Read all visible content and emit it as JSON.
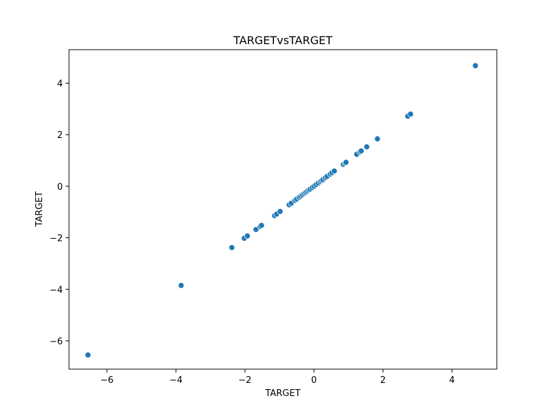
{
  "chart_data": {
    "type": "scatter",
    "title": "TARGETvsTARGET",
    "xlabel": "TARGET",
    "ylabel": "TARGET",
    "xlim": [
      -7.1,
      5.3
    ],
    "ylim": [
      -7.1,
      5.3
    ],
    "xticks": [
      -6,
      -4,
      -2,
      0,
      2,
      4
    ],
    "yticks": [
      -6,
      -4,
      -2,
      0,
      2,
      4
    ],
    "xtick_labels": [
      "−6",
      "−4",
      "−2",
      "0",
      "2",
      "4"
    ],
    "ytick_labels": [
      "−6",
      "−4",
      "−2",
      "0",
      "2",
      "4"
    ],
    "grid": false,
    "color": "#1f77b4",
    "x": [
      -6.55,
      -3.85,
      -2.38,
      -2.02,
      -1.93,
      -1.68,
      -1.56,
      -1.52,
      -1.14,
      -1.08,
      -0.98,
      -0.72,
      -0.66,
      -0.55,
      -0.5,
      -0.43,
      -0.38,
      -0.33,
      -0.28,
      -0.24,
      -0.2,
      -0.15,
      -0.11,
      -0.05,
      0.0,
      0.06,
      0.12,
      0.18,
      0.22,
      0.26,
      0.33,
      0.38,
      0.47,
      0.52,
      0.59,
      0.85,
      0.9,
      0.93,
      1.24,
      1.33,
      1.37,
      1.53,
      1.84,
      2.72,
      2.8,
      4.68
    ],
    "y": [
      -6.55,
      -3.85,
      -2.38,
      -2.02,
      -1.93,
      -1.68,
      -1.56,
      -1.52,
      -1.14,
      -1.08,
      -0.98,
      -0.72,
      -0.66,
      -0.55,
      -0.5,
      -0.43,
      -0.38,
      -0.33,
      -0.28,
      -0.24,
      -0.2,
      -0.15,
      -0.11,
      -0.05,
      0.0,
      0.06,
      0.12,
      0.18,
      0.22,
      0.26,
      0.33,
      0.38,
      0.47,
      0.52,
      0.59,
      0.85,
      0.9,
      0.93,
      1.24,
      1.33,
      1.37,
      1.53,
      1.84,
      2.72,
      2.8,
      4.68
    ]
  }
}
